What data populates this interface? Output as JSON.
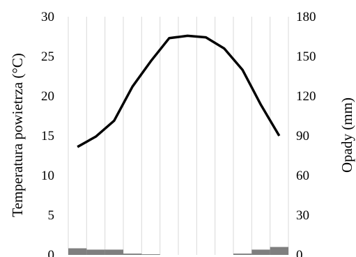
{
  "chart_data": {
    "type": "bar+line",
    "months": 12,
    "grid": "vertical",
    "y_left": {
      "label": "Temperatura powietrza (°C)",
      "ylim": [
        0,
        30
      ],
      "ticks": [
        0,
        5,
        10,
        15,
        20,
        25,
        30
      ]
    },
    "y_right": {
      "label": "Opady (mm)",
      "ylim": [
        0,
        180
      ],
      "ticks": [
        0,
        30,
        60,
        90,
        120,
        150,
        180
      ]
    },
    "series": [
      {
        "type": "line",
        "axis": "left",
        "color": "#000000",
        "values": [
          13.6,
          14.9,
          16.9,
          21.2,
          24.4,
          27.3,
          27.6,
          27.4,
          26.0,
          23.3,
          18.9,
          15.0
        ]
      },
      {
        "type": "bar",
        "axis": "right",
        "color": "#7f7f7f",
        "values": [
          5,
          4,
          4,
          1,
          0.5,
          0,
          0,
          0,
          0,
          1,
          4,
          6
        ]
      }
    ]
  }
}
